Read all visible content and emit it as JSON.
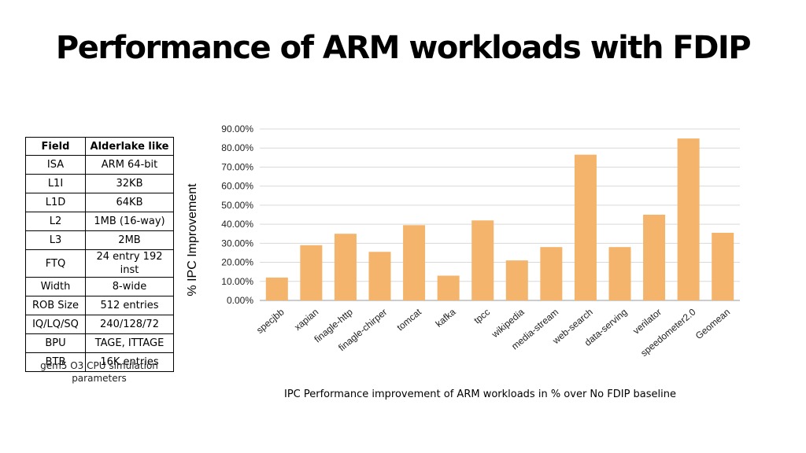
{
  "title": "Performance of ARM workloads with FDIP",
  "table": {
    "headers": [
      "Field",
      "Alderlake like"
    ],
    "rows": [
      [
        "ISA",
        "ARM 64-bit"
      ],
      [
        "L1I",
        "32KB"
      ],
      [
        "L1D",
        "64KB"
      ],
      [
        "L2",
        "1MB (16-way)"
      ],
      [
        "L3",
        "2MB"
      ],
      [
        "FTQ",
        "24 entry 192 inst"
      ],
      [
        "Width",
        "8-wide"
      ],
      [
        "ROB Size",
        "512 entries"
      ],
      [
        "IQ/LQ/SQ",
        "240/128/72"
      ],
      [
        "BPU",
        "TAGE, ITTAGE"
      ],
      [
        "BTB",
        "16K entries"
      ]
    ],
    "caption": "gem5 O3 CPU simulation parameters"
  },
  "chart_caption": "IPC Performance improvement of ARM workloads in % over No FDIP baseline",
  "chart_data": {
    "type": "bar",
    "ylabel": "% IPC Improvement",
    "xlabel": "",
    "ylim": [
      0,
      90
    ],
    "yticks": [
      "0.00%",
      "10.00%",
      "20.00%",
      "30.00%",
      "40.00%",
      "50.00%",
      "60.00%",
      "70.00%",
      "80.00%",
      "90.00%"
    ],
    "grid": true,
    "bar_color": "#F4B46B",
    "categories": [
      "specjbb",
      "xapian",
      "finagle-http",
      "finagle-chirper",
      "tomcat",
      "kafka",
      "tpcc",
      "wikipedia",
      "media-stream",
      "web-search",
      "data-serving",
      "verilator",
      "speedometer2.0",
      "Geomean"
    ],
    "values": [
      12,
      29,
      35,
      25.5,
      39.5,
      13,
      42,
      21,
      28,
      76.5,
      28,
      45,
      85,
      35.5
    ]
  }
}
